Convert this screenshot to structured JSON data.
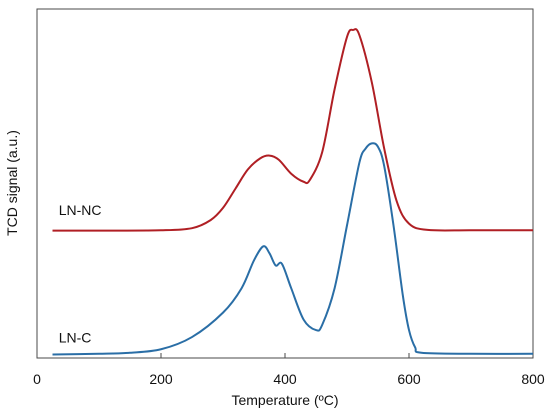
{
  "chart_data": {
    "type": "line",
    "title": "",
    "xlabel": "Temperature  (ºC)",
    "ylabel": "TCD signal (a.u.)",
    "xlim": [
      0,
      800
    ],
    "ylim": [
      0,
      1
    ],
    "xticks": [
      0,
      200,
      400,
      600,
      800
    ],
    "yticks_visible": false,
    "grid": false,
    "legend": "none",
    "series": [
      {
        "name": "LN-NC",
        "color": "#b01f24",
        "x": [
          25,
          100,
          200,
          250,
          280,
          300,
          320,
          340,
          360,
          375,
          390,
          410,
          430,
          440,
          460,
          480,
          500,
          510,
          520,
          540,
          560,
          580,
          600,
          630,
          700,
          800
        ],
        "y": [
          0.365,
          0.365,
          0.366,
          0.372,
          0.395,
          0.43,
          0.485,
          0.54,
          0.572,
          0.58,
          0.568,
          0.528,
          0.505,
          0.51,
          0.59,
          0.77,
          0.92,
          0.94,
          0.925,
          0.79,
          0.6,
          0.45,
          0.385,
          0.367,
          0.366,
          0.366
        ]
      },
      {
        "name": "LN-C",
        "color": "#2a6ea6",
        "x": [
          25,
          100,
          150,
          200,
          250,
          300,
          330,
          350,
          365,
          375,
          385,
          395,
          410,
          430,
          450,
          460,
          480,
          500,
          520,
          530,
          540,
          550,
          560,
          575,
          590,
          600,
          610,
          620,
          700,
          800
        ],
        "y": [
          0.01,
          0.012,
          0.015,
          0.025,
          0.06,
          0.13,
          0.2,
          0.28,
          0.32,
          0.3,
          0.265,
          0.27,
          0.2,
          0.11,
          0.08,
          0.095,
          0.2,
          0.38,
          0.56,
          0.6,
          0.615,
          0.605,
          0.55,
          0.38,
          0.18,
          0.08,
          0.03,
          0.015,
          0.012,
          0.012
        ]
      }
    ],
    "annotations": [
      {
        "text": "LN-NC",
        "x": 35,
        "y": 0.41,
        "color": "#111111"
      },
      {
        "text": "LN-C",
        "x": 35,
        "y": 0.045,
        "color": "#111111"
      }
    ]
  }
}
